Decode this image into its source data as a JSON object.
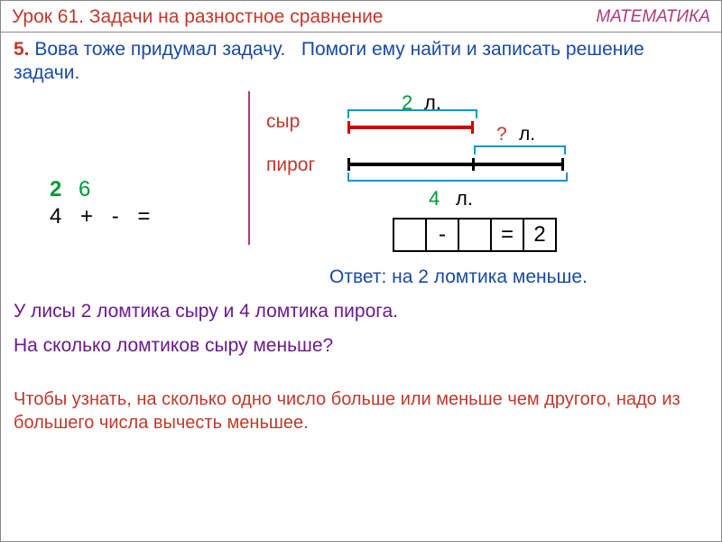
{
  "header": {
    "lesson": "Урок 61. Задачи на разностное сравнение",
    "subject": "МАТЕМАТИКА"
  },
  "task": {
    "num": "5.",
    "text1": "Вова тоже придумал задачу.",
    "text2": "Помоги ему найти и записать решение задачи."
  },
  "diagram": {
    "cheese_label": "сыр",
    "pie_label": "пирог",
    "top_value": "2",
    "top_unit": "л.",
    "unknown": "?",
    "mid_unit": "л.",
    "bottom_value": "4",
    "bottom_unit": "л.",
    "colors": {
      "red": "#cc0000",
      "black": "#000000",
      "bracket": "#0099cc",
      "green": "#009933"
    }
  },
  "left_nums": {
    "n2": "2",
    "n6": "6",
    "n4": "4",
    "plus": "+",
    "minus": "-",
    "eq": "="
  },
  "equation": {
    "c1": "",
    "c2": "-",
    "c3": "",
    "c4": "=",
    "c5": "2"
  },
  "answer": "Ответ: на 2 ломтика меньше.",
  "fox": "У лисы  2 ломтика сыру и 4  ломтика пирога.",
  "question": "На сколько ломтиков сыру меньше?",
  "rule": "Чтобы узнать, на сколько одно число больше или меньше чем другого, надо из большего числа вычесть меньшее."
}
